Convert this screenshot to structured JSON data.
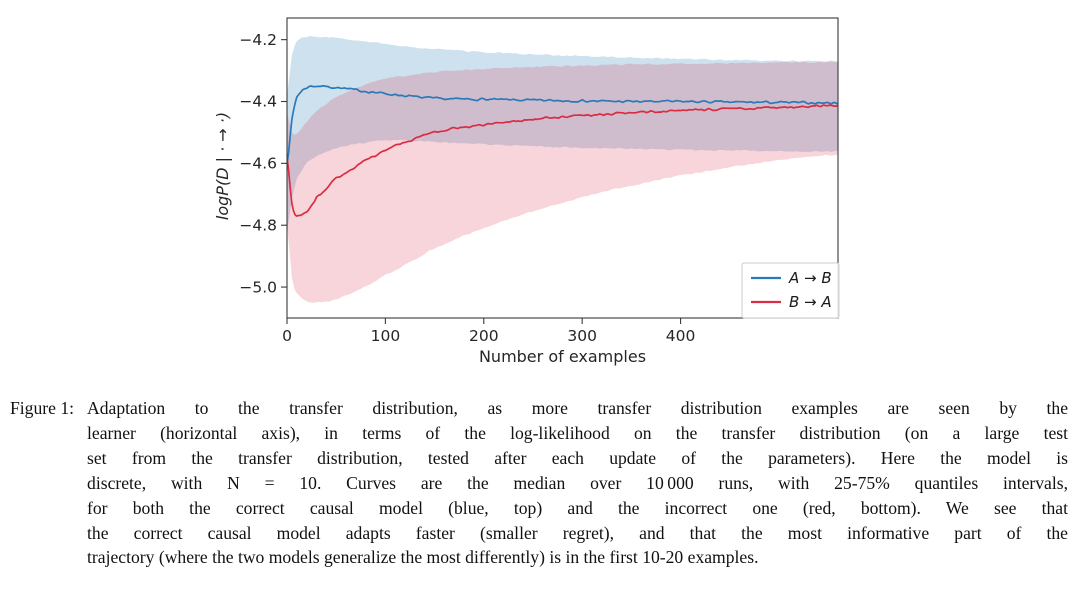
{
  "figure": {
    "caption_label": "Figure 1:",
    "caption_lines": [
      "Adaptation to the transfer distribution, as more transfer distribution examples are seen by the",
      "learner (horizontal axis), in terms of the log-likelihood on the transfer distribution (on a large test",
      "set from the transfer distribution, tested after each update of the parameters). Here the model is",
      "discrete, with N = 10. Curves are the median over 10 000 runs, with 25-75% quantiles intervals,",
      "for both the correct causal model (blue, top) and the incorrect one (red, bottom). We see that",
      "the correct causal model adapts faster (smaller regret), and that the most informative part of the",
      "trajectory (where the two models generalize the most differently) is in the first 10-20 examples."
    ]
  },
  "chart_data": {
    "type": "line",
    "title": "",
    "xlabel": "Number of examples",
    "ylabel": "logP(D | · → ·)",
    "xlim": [
      0,
      560
    ],
    "ylim": [
      -5.1,
      -4.13
    ],
    "xticks": [
      0,
      100,
      200,
      300,
      400
    ],
    "yticks": [
      -4.2,
      -4.4,
      -4.6,
      -4.8,
      -5.0
    ],
    "grid": false,
    "legend_position": "lower right",
    "band_quantiles": "25-75%",
    "x": [
      0,
      5,
      10,
      20,
      30,
      50,
      75,
      100,
      150,
      200,
      250,
      300,
      350,
      400,
      450,
      500,
      560
    ],
    "series": [
      {
        "name": "A → B",
        "color": "#2a79b8",
        "band_color": "#1f77b4",
        "band_opacity": 0.22,
        "values": [
          -4.6,
          -4.46,
          -4.385,
          -4.355,
          -4.35,
          -4.355,
          -4.365,
          -4.375,
          -4.39,
          -4.393,
          -4.396,
          -4.398,
          -4.4,
          -4.4,
          -4.402,
          -4.403,
          -4.405
        ],
        "q75": [
          -4.38,
          -4.25,
          -4.205,
          -4.19,
          -4.19,
          -4.195,
          -4.205,
          -4.215,
          -4.23,
          -4.24,
          -4.248,
          -4.253,
          -4.258,
          -4.262,
          -4.266,
          -4.268,
          -4.27
        ],
        "q25": [
          -4.82,
          -4.71,
          -4.65,
          -4.6,
          -4.575,
          -4.55,
          -4.535,
          -4.525,
          -4.53,
          -4.538,
          -4.545,
          -4.55,
          -4.553,
          -4.556,
          -4.558,
          -4.56,
          -4.562
        ]
      },
      {
        "name": "B → A",
        "color": "#da2c43",
        "band_color": "#d62b45",
        "band_opacity": 0.2,
        "values": [
          -4.58,
          -4.73,
          -4.77,
          -4.755,
          -4.71,
          -4.65,
          -4.6,
          -4.555,
          -4.5,
          -4.475,
          -4.457,
          -4.445,
          -4.437,
          -4.43,
          -4.424,
          -4.419,
          -4.414
        ],
        "q75": [
          -4.44,
          -4.5,
          -4.505,
          -4.465,
          -4.43,
          -4.385,
          -4.35,
          -4.325,
          -4.305,
          -4.295,
          -4.288,
          -4.284,
          -4.28,
          -4.278,
          -4.276,
          -4.274,
          -4.272
        ],
        "q25": [
          -4.8,
          -4.97,
          -5.02,
          -5.045,
          -5.05,
          -5.04,
          -5.005,
          -4.96,
          -4.875,
          -4.81,
          -4.755,
          -4.71,
          -4.672,
          -4.64,
          -4.613,
          -4.59,
          -4.572
        ]
      }
    ]
  }
}
